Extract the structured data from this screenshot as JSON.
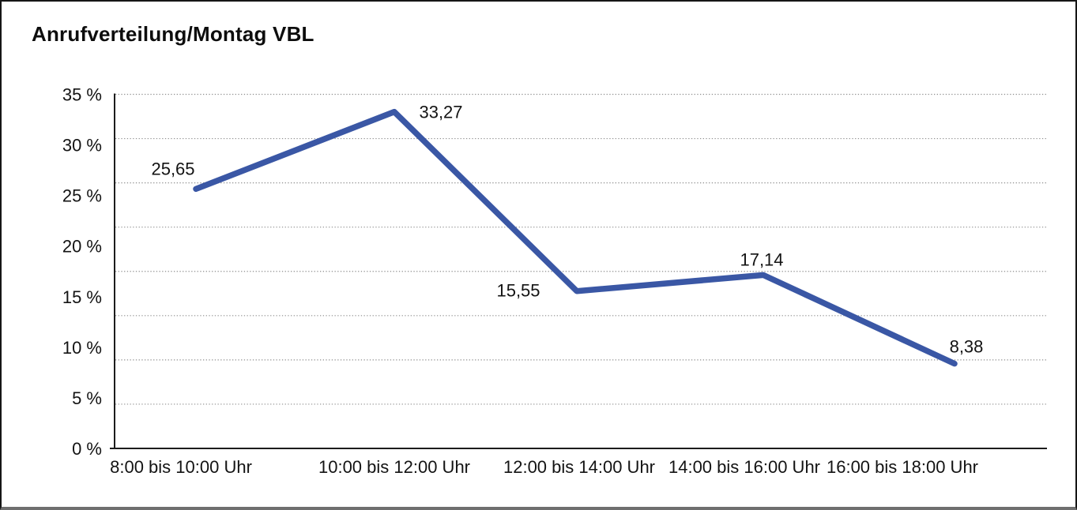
{
  "page": {
    "title": "Anrufverteilung/Montag VBL"
  },
  "chart_data": {
    "type": "line",
    "title": "Anrufverteilung/Montag VBL",
    "categories": [
      "8:00 bis 10:00 Uhr",
      "10:00 bis 12:00 Uhr",
      "12:00 bis 14:00 Uhr",
      "14:00 bis 16:00 Uhr",
      "16:00 bis 18:00 Uhr"
    ],
    "values": [
      25.65,
      33.27,
      15.55,
      17.14,
      8.38
    ],
    "point_labels": [
      "25,65",
      "33,27",
      "15,55",
      "17,14",
      "8,38"
    ],
    "y_ticks": [
      "0 %",
      "5 %",
      "10 %",
      "15 %",
      "20 %",
      "25 %",
      "30 %",
      "35 %"
    ],
    "y_tick_values": [
      0,
      5,
      10,
      15,
      20,
      25,
      30,
      35
    ],
    "ylim": [
      0,
      35
    ],
    "xlabel": "",
    "ylabel": "",
    "legend": "none",
    "grid": "horizontal-dotted",
    "gridline_count": 8,
    "line_color": "#3A57A5",
    "grid_color": "#8f8f8f",
    "axis_color": "#1c1c1c",
    "text_color": "#131313"
  }
}
